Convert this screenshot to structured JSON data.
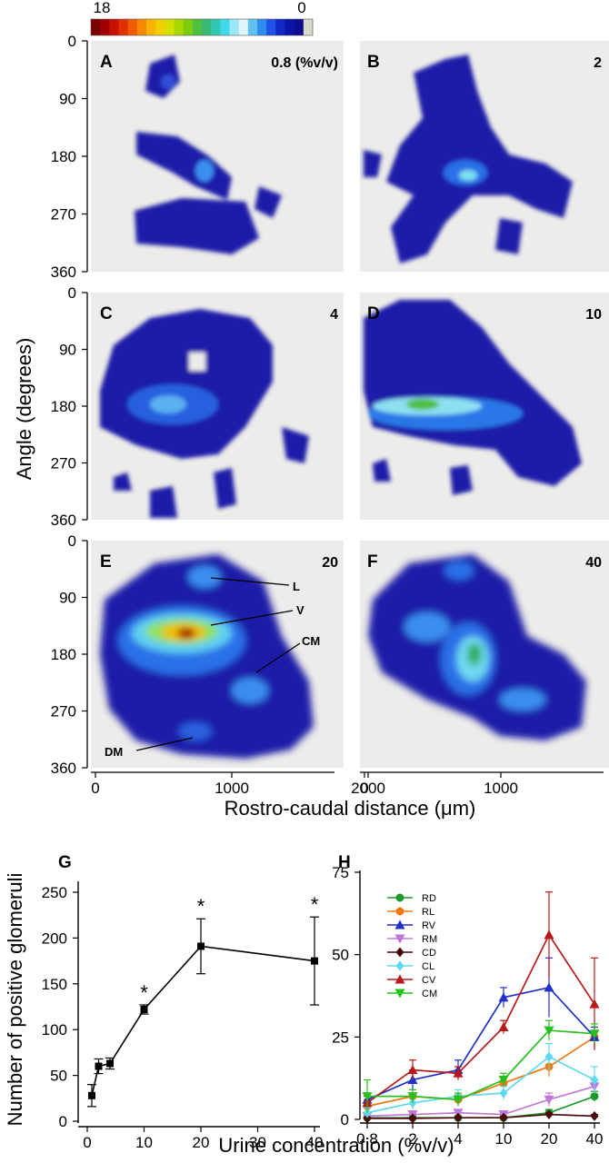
{
  "colorbar": {
    "max_label": "18",
    "min_label": "0",
    "colors": [
      "#7a0000",
      "#a00000",
      "#c81000",
      "#e03000",
      "#f05a00",
      "#f58a00",
      "#f8b400",
      "#f0d000",
      "#d6e000",
      "#a8d800",
      "#7ccc10",
      "#50c040",
      "#38b870",
      "#30c8b0",
      "#40d8e8",
      "#9ce8f8",
      "#e0f4fc",
      "#60c0f0",
      "#2f8cf0",
      "#2050e8",
      "#1028c8",
      "#0c14a8",
      "#0a0c90",
      "#d8d8c8"
    ]
  },
  "heatmap_axes": {
    "ylabel": "Angle (degrees)",
    "xlabel": "Rostro-caudal distance (μm)",
    "yticks": [
      "0",
      "90",
      "180",
      "270",
      "360"
    ],
    "xticks": [
      "0",
      "1000",
      "2000"
    ]
  },
  "panels": [
    {
      "letter": "A",
      "conc": "0.8 (%v/v)"
    },
    {
      "letter": "B",
      "conc": "2"
    },
    {
      "letter": "C",
      "conc": "4"
    },
    {
      "letter": "D",
      "conc": "10"
    },
    {
      "letter": "E",
      "conc": "20"
    },
    {
      "letter": "F",
      "conc": "40"
    }
  ],
  "annotations": {
    "L": "L",
    "V": "V",
    "CM": "CM",
    "DM": "DM"
  },
  "chart_data": [
    {
      "type": "line",
      "panel": "G",
      "xlabel": "Urine concentration (%v/v)",
      "ylabel": "Number of positive glomeruli",
      "x": [
        0.8,
        2,
        4,
        10,
        20,
        40
      ],
      "xticks": [
        "0",
        "10",
        "20",
        "30",
        "40"
      ],
      "yticks": [
        "0",
        "50",
        "100",
        "150",
        "200",
        "250"
      ],
      "xlim": [
        0,
        40
      ],
      "ylim": [
        0,
        250
      ],
      "series": [
        {
          "values": [
            28,
            60,
            63,
            122,
            191,
            175
          ],
          "errors": [
            12,
            8,
            6,
            5,
            30,
            48
          ]
        }
      ],
      "significance": [
        "",
        "",
        "",
        "*",
        "*",
        "*"
      ]
    },
    {
      "type": "line",
      "panel": "H",
      "xlabel": "Urine concentration (%v/v)",
      "categories": [
        "0.8",
        "2",
        "4",
        "10",
        "20",
        "40"
      ],
      "yticks": [
        "0",
        "25",
        "50",
        "75"
      ],
      "ylim": [
        0,
        75
      ],
      "legend_position": "top-left",
      "series": [
        {
          "name": "RD",
          "color": "#1a9a2a",
          "marker": "circle",
          "values": [
            0.5,
            0.5,
            0.5,
            0.5,
            2,
            7
          ],
          "errors": [
            0.5,
            0.5,
            0.5,
            0.5,
            1,
            1.5
          ]
        },
        {
          "name": "RL",
          "color": "#f07a10",
          "marker": "circle",
          "values": [
            4,
            7,
            6,
            11,
            16,
            25
          ],
          "errors": [
            2,
            2,
            1.5,
            2,
            3,
            3
          ]
        },
        {
          "name": "RV",
          "color": "#2030c8",
          "marker": "triangle-up",
          "values": [
            6,
            12,
            15,
            37,
            40,
            25
          ],
          "errors": [
            2,
            3,
            3,
            3,
            9,
            3
          ]
        },
        {
          "name": "RM",
          "color": "#c078d8",
          "marker": "triangle-down",
          "values": [
            1,
            1.5,
            2,
            1.5,
            6,
            10
          ],
          "errors": [
            1,
            1,
            1,
            1,
            2,
            2
          ]
        },
        {
          "name": "CD",
          "color": "#4a0a0a",
          "marker": "diamond",
          "values": [
            0.3,
            0.3,
            0.5,
            0.5,
            1.5,
            1
          ],
          "errors": [
            0.3,
            0.3,
            0.3,
            0.3,
            0.5,
            0.5
          ]
        },
        {
          "name": "CL",
          "color": "#60d8f0",
          "marker": "diamond",
          "values": [
            2,
            5,
            7,
            8,
            19,
            12
          ],
          "errors": [
            1.5,
            2,
            2,
            2,
            4,
            4
          ]
        },
        {
          "name": "CV",
          "color": "#b81818",
          "marker": "triangle-up",
          "values": [
            5,
            15,
            14,
            28,
            56,
            35
          ],
          "errors": [
            2,
            3,
            2,
            2,
            13,
            14
          ]
        },
        {
          "name": "CM",
          "color": "#28c020",
          "marker": "triangle-down",
          "values": [
            7,
            7,
            6,
            12,
            27,
            26
          ],
          "errors": [
            5,
            2,
            2,
            2,
            3,
            3
          ]
        }
      ]
    }
  ]
}
